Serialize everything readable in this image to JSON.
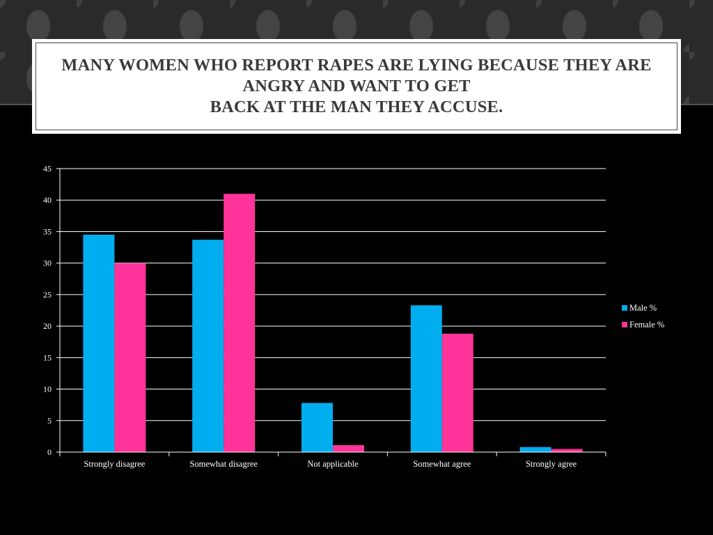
{
  "slide": {
    "title_lines": [
      "MANY WOMEN WHO REPORT RAPES ARE LYING BECAUSE THEY ARE",
      "ANGRY AND WANT TO GET",
      "BACK AT THE MAN THEY ACCUSE."
    ]
  },
  "colors": {
    "background": "#000000",
    "male": "#00AEEF",
    "female": "#FF3399",
    "title_text": "#3A3A3A"
  },
  "chart_data": {
    "type": "bar",
    "title": "",
    "xlabel": "",
    "ylabel": "",
    "categories": [
      "Strongly disagree",
      "Somewhat disagree",
      "Not applicable",
      "Somewhat agree",
      "Strongly agree"
    ],
    "series": [
      {
        "name": "Male %",
        "values": [
          34.5,
          33.7,
          7.8,
          23.3,
          0.8
        ]
      },
      {
        "name": "Female %",
        "values": [
          30.0,
          41.0,
          1.1,
          18.8,
          0.5
        ]
      }
    ],
    "ylim": [
      0,
      45
    ],
    "yticks": [
      0,
      5,
      10,
      15,
      20,
      25,
      30,
      35,
      40,
      45
    ],
    "grid": true,
    "legend_position": "right"
  }
}
